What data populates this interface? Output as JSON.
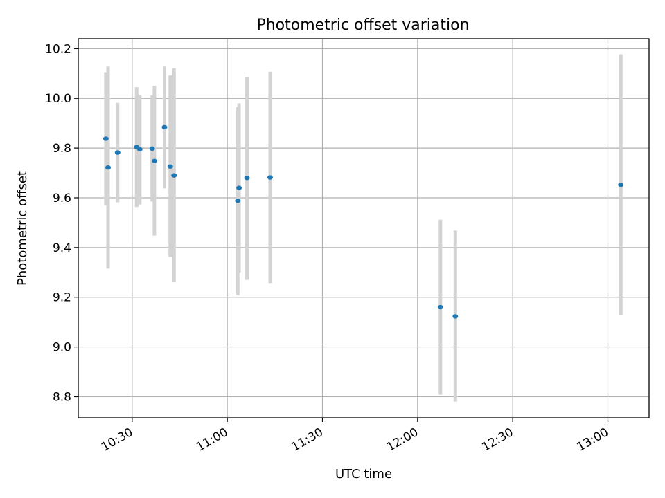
{
  "chart_data": {
    "type": "scatter",
    "title": "Photometric offset variation",
    "xlabel": "UTC time",
    "ylabel": "Photometric offset",
    "xlim": [
      "10:13",
      "13:13"
    ],
    "ylim": [
      8.715,
      10.24
    ],
    "x_ticks": [
      "10:30",
      "11:00",
      "11:30",
      "12:00",
      "12:30",
      "13:00"
    ],
    "y_ticks": [
      "8.8",
      "9.0",
      "9.2",
      "9.4",
      "9.6",
      "9.8",
      "10.0",
      "10.2"
    ],
    "grid": true,
    "colors": {
      "point": "#1f77b4",
      "errorbar": "#d3d3d3"
    },
    "points": [
      {
        "x": "10:21.7",
        "y": 9.838,
        "ylo": 9.57,
        "yhi": 10.105
      },
      {
        "x": "10:22.4",
        "y": 9.722,
        "ylo": 9.315,
        "yhi": 10.128
      },
      {
        "x": "10:25.4",
        "y": 9.782,
        "ylo": 9.582,
        "yhi": 9.982
      },
      {
        "x": "10:31.4",
        "y": 9.804,
        "ylo": 9.563,
        "yhi": 10.045
      },
      {
        "x": "10:32.4",
        "y": 9.795,
        "ylo": 9.573,
        "yhi": 10.015
      },
      {
        "x": "10:36.3",
        "y": 9.798,
        "ylo": 9.585,
        "yhi": 10.012
      },
      {
        "x": "10:37.0",
        "y": 9.748,
        "ylo": 9.448,
        "yhi": 10.05
      },
      {
        "x": "10:40.2",
        "y": 9.884,
        "ylo": 9.638,
        "yhi": 10.128
      },
      {
        "x": "10:42.0",
        "y": 9.726,
        "ylo": 9.362,
        "yhi": 10.092
      },
      {
        "x": "10:43.2",
        "y": 9.69,
        "ylo": 9.26,
        "yhi": 10.121
      },
      {
        "x": "11:03.3",
        "y": 9.588,
        "ylo": 9.208,
        "yhi": 9.965
      },
      {
        "x": "11:03.7",
        "y": 9.64,
        "ylo": 9.3,
        "yhi": 9.98
      },
      {
        "x": "11:06.2",
        "y": 9.68,
        "ylo": 9.27,
        "yhi": 10.087
      },
      {
        "x": "11:13.5",
        "y": 9.682,
        "ylo": 9.257,
        "yhi": 10.107
      },
      {
        "x": "12:07.2",
        "y": 9.16,
        "ylo": 8.808,
        "yhi": 9.512
      },
      {
        "x": "12:11.9",
        "y": 9.123,
        "ylo": 8.78,
        "yhi": 9.468
      },
      {
        "x": "13:04.1",
        "y": 9.652,
        "ylo": 9.127,
        "yhi": 10.177
      }
    ]
  }
}
